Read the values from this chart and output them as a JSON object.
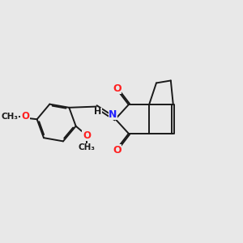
{
  "bg_color": "#e8e8e8",
  "bond_color": "#1a1a1a",
  "N_color": "#2020ff",
  "O_color": "#ff2020",
  "lw": 1.4,
  "dbo": 0.055,
  "fs": 8.5,
  "fig_w": 3.0,
  "fig_h": 3.0,
  "dpi": 100,
  "xlim": [
    0,
    10
  ],
  "ylim": [
    0,
    10
  ]
}
